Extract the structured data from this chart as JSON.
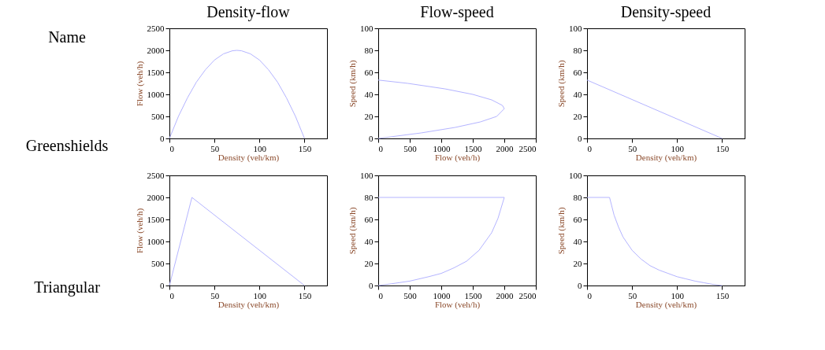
{
  "chart_data": [
    {
      "type": "other",
      "annotations": [
        "Name",
        "Greenshields",
        "Triangular"
      ]
    },
    {
      "type": "line",
      "title": "Density-flow",
      "xlabel": "Density (veh/km)",
      "ylabel": "Flow (veh/h)",
      "xlim": [
        0,
        175
      ],
      "xticks": [
        0,
        50,
        100,
        150
      ],
      "ylim": [
        0,
        2500
      ],
      "yticks": [
        0,
        500,
        1000,
        1500,
        2000,
        2500
      ],
      "grid": false,
      "series": [
        {
          "color": "#b4b4ff",
          "x": [
            0,
            10,
            20,
            30,
            40,
            50,
            60,
            70,
            75,
            80,
            90,
            100,
            110,
            120,
            130,
            140,
            150
          ],
          "values": [
            0,
            500,
            920,
            1280,
            1560,
            1780,
            1920,
            1990,
            2000,
            1990,
            1920,
            1780,
            1560,
            1280,
            920,
            500,
            0
          ]
        }
      ]
    },
    {
      "type": "line",
      "title": "Flow-speed",
      "xlabel": "Flow (veh/h)",
      "ylabel": "Speed (km/h)",
      "xlim": [
        0,
        2500
      ],
      "xticks": [
        0,
        500,
        1000,
        1500,
        2000,
        2500
      ],
      "ylim": [
        0,
        100
      ],
      "yticks": [
        0,
        20,
        40,
        60,
        80,
        100
      ],
      "grid": false,
      "series": [
        {
          "color": "#b4b4ff",
          "x": [
            0,
            470,
            1060,
            1500,
            1800,
            1970,
            2000,
            1880,
            1620,
            1220,
            680,
            0
          ],
          "values": [
            53,
            50,
            45,
            40,
            35,
            30,
            27,
            20,
            15,
            10,
            5,
            0
          ]
        }
      ]
    },
    {
      "type": "line",
      "title": "Density-speed",
      "xlabel": "Density (veh/km)",
      "ylabel": "Speed (km/h)",
      "xlim": [
        0,
        175
      ],
      "xticks": [
        0,
        50,
        100,
        150
      ],
      "ylim": [
        0,
        100
      ],
      "yticks": [
        0,
        20,
        40,
        60,
        80,
        100
      ],
      "grid": false,
      "series": [
        {
          "color": "#b4b4ff",
          "x": [
            0,
            150
          ],
          "values": [
            53,
            0
          ]
        }
      ]
    },
    {
      "type": "line",
      "xlabel": "Density (veh/km)",
      "ylabel": "Flow (veh/h)",
      "xlim": [
        0,
        175
      ],
      "xticks": [
        0,
        50,
        100,
        150
      ],
      "ylim": [
        0,
        2500
      ],
      "yticks": [
        0,
        500,
        1000,
        1500,
        2000,
        2500
      ],
      "grid": false,
      "series": [
        {
          "color": "#b4b4ff",
          "x": [
            0,
            25,
            150
          ],
          "values": [
            0,
            2000,
            0
          ]
        }
      ]
    },
    {
      "type": "line",
      "xlabel": "Flow (veh/h)",
      "ylabel": "Speed (km/h)",
      "xlim": [
        0,
        2500
      ],
      "xticks": [
        0,
        500,
        1000,
        1500,
        2000,
        2500
      ],
      "ylim": [
        0,
        100
      ],
      "yticks": [
        0,
        20,
        40,
        60,
        80,
        100
      ],
      "grid": false,
      "series": [
        {
          "color": "#b4b4ff",
          "x": [
            0,
            2000,
            1900,
            1800,
            1600,
            1400,
            1200,
            1000,
            800,
            500,
            200,
            0
          ],
          "values": [
            80,
            80,
            61,
            48,
            32,
            22,
            16,
            11,
            8,
            4,
            1.5,
            0
          ]
        }
      ]
    },
    {
      "type": "line",
      "xlabel": "Density (veh/km)",
      "ylabel": "Speed (km/h)",
      "xlim": [
        0,
        175
      ],
      "xticks": [
        0,
        50,
        100,
        150
      ],
      "ylim": [
        0,
        100
      ],
      "yticks": [
        0,
        20,
        40,
        60,
        80,
        100
      ],
      "grid": false,
      "series": [
        {
          "color": "#b4b4ff",
          "x": [
            0,
            25,
            30,
            35,
            40,
            50,
            60,
            70,
            80,
            90,
            100,
            110,
            120,
            130,
            140,
            150
          ],
          "values": [
            80,
            80,
            64,
            53,
            44,
            32,
            24,
            18,
            14,
            11,
            8,
            6,
            4,
            2.5,
            1,
            0
          ]
        }
      ]
    }
  ]
}
